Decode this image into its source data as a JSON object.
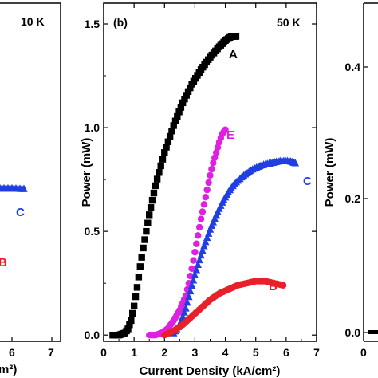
{
  "chart_data": [
    {
      "panel": "left",
      "type": "scatter",
      "temperature_label": "10 K",
      "xlabel_fragment": "m²",
      "xticks": [
        "6",
        "7"
      ],
      "xlim": [
        0,
        7
      ],
      "series": [
        {
          "name": "C",
          "color": "#1f3fe0",
          "marker": "triangle",
          "x": [
            4.5,
            4.8,
            5.1,
            5.4,
            5.7,
            6.0,
            6.3
          ],
          "y": [
            0.7,
            0.7,
            0.7,
            0.7,
            0.7,
            0.7,
            0.69
          ]
        },
        {
          "name": "B",
          "color": "#e8202a",
          "marker": "circle",
          "x": [],
          "y": []
        }
      ]
    },
    {
      "panel": "b",
      "panel_label": "(b)",
      "temperature_label": "50 K",
      "type": "scatter",
      "xlabel": "Current Density (kA/cm²)",
      "ylabel": "Power (mW)",
      "xticks": [
        "0",
        "1",
        "2",
        "3",
        "4",
        "5",
        "6",
        "7"
      ],
      "yticks": [
        "0.0",
        "0.5",
        "1.0",
        "1.5"
      ],
      "xlim": [
        0,
        7
      ],
      "ylim": [
        -0.03,
        1.6
      ],
      "series": [
        {
          "name": "A",
          "color": "#000000",
          "marker": "square",
          "x": [
            0.3,
            0.5,
            0.7,
            0.8,
            0.9,
            1.0,
            1.1,
            1.2,
            1.3,
            1.4,
            1.5,
            1.7,
            2.0,
            2.3,
            2.6,
            2.9,
            3.2,
            3.5,
            3.8,
            4.0,
            4.2,
            4.35
          ],
          "y": [
            0.0,
            0.0,
            0.01,
            0.03,
            0.07,
            0.14,
            0.23,
            0.33,
            0.42,
            0.5,
            0.58,
            0.72,
            0.88,
            1.01,
            1.12,
            1.21,
            1.28,
            1.34,
            1.39,
            1.42,
            1.44,
            1.44
          ]
        },
        {
          "name": "E",
          "color": "#e020e0",
          "marker": "circle",
          "x": [
            1.5,
            1.7,
            1.9,
            2.1,
            2.3,
            2.5,
            2.7,
            2.8,
            2.9,
            3.0,
            3.1,
            3.2,
            3.3,
            3.4,
            3.5,
            3.6,
            3.7,
            3.8,
            3.9,
            4.0
          ],
          "y": [
            0.0,
            0.0,
            0.01,
            0.03,
            0.07,
            0.12,
            0.19,
            0.25,
            0.32,
            0.4,
            0.48,
            0.56,
            0.63,
            0.7,
            0.77,
            0.83,
            0.88,
            0.93,
            0.97,
            0.99
          ]
        },
        {
          "name": "C",
          "color": "#1f3fe0",
          "marker": "triangle",
          "x": [
            2.3,
            2.5,
            2.7,
            2.9,
            3.1,
            3.3,
            3.5,
            3.7,
            3.9,
            4.1,
            4.3,
            4.6,
            4.9,
            5.2,
            5.5,
            5.8,
            6.1,
            6.3
          ],
          "y": [
            0.01,
            0.05,
            0.13,
            0.24,
            0.34,
            0.43,
            0.51,
            0.58,
            0.64,
            0.69,
            0.73,
            0.77,
            0.8,
            0.82,
            0.83,
            0.84,
            0.84,
            0.83
          ]
        },
        {
          "name": "B",
          "color": "#e8202a",
          "marker": "circle",
          "x": [
            2.0,
            2.3,
            2.6,
            2.9,
            3.2,
            3.5,
            3.8,
            4.1,
            4.4,
            4.7,
            5.0,
            5.3,
            5.6,
            5.9
          ],
          "y": [
            0.0,
            0.02,
            0.05,
            0.09,
            0.13,
            0.17,
            0.2,
            0.22,
            0.24,
            0.25,
            0.26,
            0.26,
            0.25,
            0.24
          ]
        }
      ]
    },
    {
      "panel": "right",
      "type": "scatter",
      "ylabel": "Power (mW)",
      "yticks": [
        "0.0",
        "0.2",
        "0.4"
      ],
      "ylim": [
        -0.005,
        0.5
      ],
      "series": []
    }
  ],
  "labels": {
    "left_temp": "10 K",
    "left_xtick_6": "6",
    "left_xtick_7": "7",
    "left_xlabel": "m²)",
    "left_tag_c": "C",
    "left_tag_b": "B",
    "b_panel": "(b)",
    "b_temp": "50 K",
    "b_xlabel": "Current Density (kA/cm²)",
    "b_ylabel": "Power (mW)",
    "b_tag_a": "A",
    "b_tag_e": "E",
    "b_tag_c": "C",
    "b_tag_b": "B",
    "right_ylabel": "Power (mW)",
    "right_ytick_0": "0.0",
    "right_ytick_1": "0.2",
    "right_ytick_2": "0.4",
    "right_xtick_0": "0"
  }
}
